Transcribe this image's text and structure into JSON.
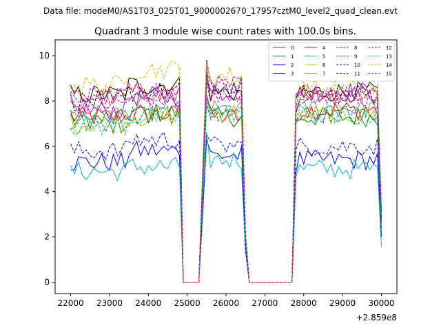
{
  "header": {
    "data_file": "Data file: modeM0/AS1T03_025T01_9000002670_17957cztM0_level2_quad_clean.evt"
  },
  "chart_data": {
    "type": "line",
    "title": "Quadrant 3 module wise count rates with 100.0s bins.",
    "xlabel": "",
    "ylabel": "",
    "x_offset_label": "+2.859e8",
    "xlim": [
      21600,
      30400
    ],
    "ylim": [
      -0.5,
      10.7
    ],
    "x_ticks": [
      22000,
      23000,
      24000,
      25000,
      26000,
      27000,
      28000,
      29000,
      30000
    ],
    "y_ticks": [
      0,
      2,
      4,
      6,
      8,
      10
    ],
    "x_tick_labels": [
      "22000",
      "23000",
      "24000",
      "25000",
      "26000",
      "27000",
      "28000",
      "29000",
      "30000"
    ],
    "y_tick_labels": [
      "0",
      "2",
      "4",
      "6",
      "8",
      "10"
    ],
    "legend_position": "top-right",
    "x_start": 22000,
    "x_step": 100,
    "series": [
      {
        "name": "0",
        "color": "#ff0000",
        "dash": "solid",
        "levels": [
          7.3,
          7.4,
          7.3,
          7.6
        ]
      },
      {
        "name": "1",
        "color": "#008000",
        "dash": "solid",
        "levels": [
          7.2,
          7.5,
          7.3,
          7.3
        ]
      },
      {
        "name": "2",
        "color": "#0000ff",
        "dash": "solid",
        "levels": [
          5.3,
          5.8,
          5.6,
          5.4
        ]
      },
      {
        "name": "3",
        "color": "#000000",
        "dash": "solid",
        "levels": [
          8.3,
          8.7,
          8.4,
          8.4
        ]
      },
      {
        "name": "4",
        "color": "#bf00bf",
        "dash": "solid",
        "levels": [
          7.6,
          8.2,
          8.4,
          8.4
        ]
      },
      {
        "name": "5",
        "color": "#00bfbf",
        "dash": "solid",
        "levels": [
          4.9,
          5.1,
          5.4,
          5.0
        ]
      },
      {
        "name": "6",
        "color": "#bfbf00",
        "dash": "solid",
        "levels": [
          7.0,
          7.3,
          7.5,
          7.4
        ]
      },
      {
        "name": "7",
        "color": "#808080",
        "dash": "solid",
        "levels": [
          7.4,
          7.7,
          7.6,
          7.7
        ]
      },
      {
        "name": "8",
        "color": "#ff0000",
        "dash": "dashed",
        "levels": [
          8.2,
          8.4,
          8.7,
          8.4
        ]
      },
      {
        "name": "9",
        "color": "#008000",
        "dash": "dashed",
        "levels": [
          7.0,
          7.4,
          7.4,
          7.4
        ]
      },
      {
        "name": "10",
        "color": "#0000ff",
        "dash": "dashed",
        "levels": [
          5.8,
          6.3,
          6.0,
          6.0
        ]
      },
      {
        "name": "11",
        "color": "#000000",
        "dash": "dashed",
        "levels": [
          8.0,
          8.4,
          8.6,
          8.3
        ]
      },
      {
        "name": "12",
        "color": "#bf00bf",
        "dash": "dashed",
        "levels": [
          7.9,
          8.1,
          8.7,
          8.3
        ]
      },
      {
        "name": "13",
        "color": "#00bfbf",
        "dash": "dashed",
        "levels": [
          6.9,
          7.3,
          7.5,
          7.4
        ]
      },
      {
        "name": "14",
        "color": "#bfbf00",
        "dash": "dashed",
        "levels": [
          8.7,
          9.4,
          9.1,
          8.5
        ]
      },
      {
        "name": "15",
        "color": "#bf00bf",
        "dash": "dashed",
        "levels": [
          8.2,
          8.5,
          8.4,
          8.2
        ]
      }
    ]
  }
}
